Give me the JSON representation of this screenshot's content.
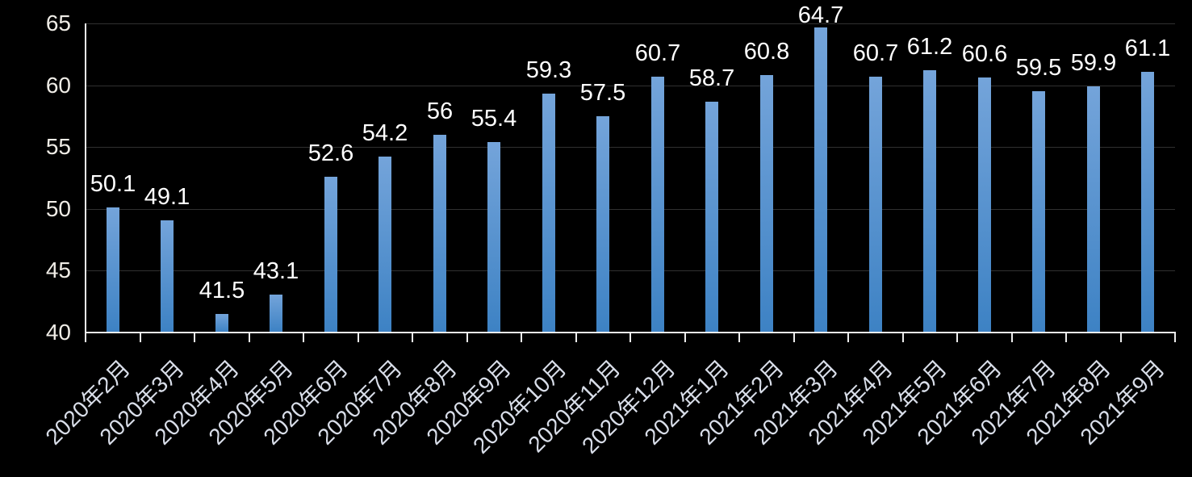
{
  "chart_data": {
    "type": "bar",
    "title": "",
    "categories": [
      "2020年2月",
      "2020年3月",
      "2020年4月",
      "2020年5月",
      "2020年6月",
      "2020年7月",
      "2020年8月",
      "2020年9月",
      "2020年10月",
      "2020年11月",
      "2020年12月",
      "2021年1月",
      "2021年2月",
      "2021年3月",
      "2021年4月",
      "2021年5月",
      "2021年6月",
      "2021年7月",
      "2021年8月",
      "2021年9月"
    ],
    "values": [
      50.1,
      49.1,
      41.5,
      43.1,
      52.6,
      54.2,
      56,
      55.4,
      59.3,
      57.5,
      60.7,
      58.7,
      60.8,
      64.7,
      60.7,
      61.2,
      60.6,
      59.5,
      59.9,
      61.1
    ],
    "value_labels": [
      "50.1",
      "49.1",
      "41.5",
      "43.1",
      "52.6",
      "54.2",
      "56",
      "55.4",
      "59.3",
      "57.5",
      "60.7",
      "58.7",
      "60.8",
      "64.7",
      "60.7",
      "61.2",
      "60.6",
      "59.5",
      "59.9",
      "61.1"
    ],
    "xlabel": "",
    "ylabel": "",
    "y_ticks": [
      40,
      45,
      50,
      55,
      60,
      65
    ],
    "ylim": [
      40,
      65
    ],
    "grid": true,
    "legend_position": "none",
    "x_label_rotation_deg": -45,
    "colors": {
      "background": "#000000",
      "bar_gradient_top": "#74A4DA",
      "bar_gradient_bottom": "#3D82C4",
      "gridline": "#303030",
      "axis_line": "#EDEDED",
      "y_tick_label": "#EFECE6",
      "x_tick_label": "#D9DEE9",
      "data_label": "#FFFFFF"
    }
  }
}
